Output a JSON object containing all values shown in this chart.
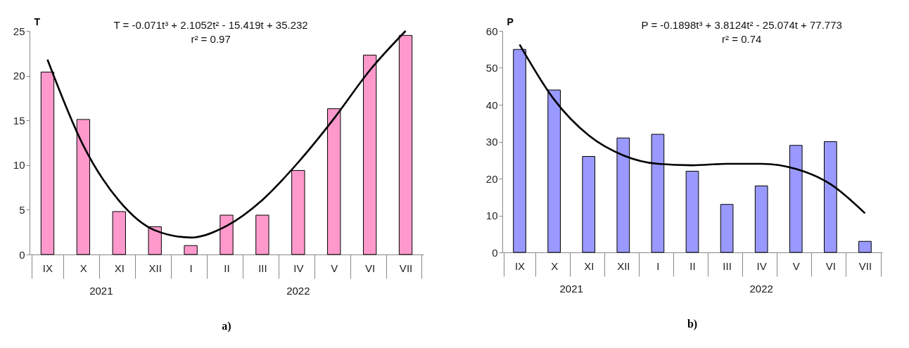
{
  "chart_data": [
    {
      "type": "bar",
      "title": "a)",
      "ylabel": "T",
      "categories": [
        "IX",
        "X",
        "XI",
        "XII",
        "I",
        "II",
        "III",
        "IV",
        "V",
        "VI",
        "VII"
      ],
      "series": [
        {
          "type": "bar",
          "color": "#ff99cc",
          "values": [
            20.4,
            15.1,
            4.8,
            3.1,
            1.0,
            4.4,
            4.4,
            9.4,
            16.3,
            22.3,
            24.5
          ]
        },
        {
          "type": "line",
          "color": "#000000",
          "values": [
            21.8,
            12.2,
            6.0,
            2.7,
            1.9,
            3.2,
            6.1,
            10.3,
            15.2,
            20.6,
            25
          ]
        }
      ],
      "ylim": [
        0,
        25
      ],
      "yticks": [
        0,
        5,
        10,
        15,
        20,
        25
      ],
      "grid": false,
      "annotations": [
        "T = -0.071t³ + 2.1052t² - 15.419t + 35.232",
        "r² = 0.97",
        "2021",
        "2022"
      ]
    },
    {
      "type": "bar",
      "title": "b)",
      "ylabel": "P",
      "categories": [
        "IX",
        "X",
        "XI",
        "XII",
        "I",
        "II",
        "III",
        "IV",
        "V",
        "VI",
        "VII"
      ],
      "series": [
        {
          "type": "bar",
          "color": "#9999ff",
          "values": [
            55,
            44,
            26,
            31,
            32,
            22,
            13,
            18,
            29,
            30,
            3
          ]
        },
        {
          "type": "line",
          "color": "#000000",
          "values": [
            56.3,
            41.4,
            31.7,
            26.3,
            24.0,
            23.6,
            24.0,
            24.0,
            22.6,
            18.5,
            10.6
          ]
        }
      ],
      "ylim": [
        0,
        60
      ],
      "yticks": [
        0,
        10,
        20,
        30,
        40,
        50,
        60
      ],
      "grid": false,
      "annotations": [
        "P = -0.1898t³ + 3.8124t² - 25.074t + 77.773",
        "r² = 0.74",
        "2021",
        "2022"
      ]
    }
  ]
}
